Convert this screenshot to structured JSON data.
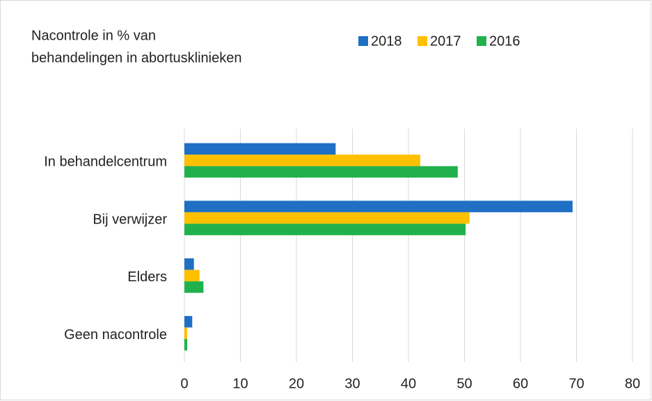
{
  "chart_data": {
    "type": "hbar",
    "title": [
      "Nacontrole in % van",
      "behandelingen in abortusklinieken"
    ],
    "categories": [
      "In behandelcentrum",
      "Bij verwijzer",
      "Elders",
      "Geen nacontrole"
    ],
    "series": [
      {
        "name": "2018",
        "color": "#1f6fc5",
        "values": [
          27.0,
          69.3,
          1.7,
          1.4
        ]
      },
      {
        "name": "2017",
        "color": "#ffc000",
        "values": [
          42.1,
          50.9,
          2.7,
          0.5
        ]
      },
      {
        "name": "2016",
        "color": "#21b14c",
        "values": [
          48.8,
          50.2,
          3.4,
          0.5
        ]
      }
    ],
    "xlim": [
      0,
      80
    ],
    "xticks": [
      0,
      10,
      20,
      30,
      40,
      50,
      60,
      70,
      80
    ],
    "grid": true,
    "legend": "top"
  }
}
